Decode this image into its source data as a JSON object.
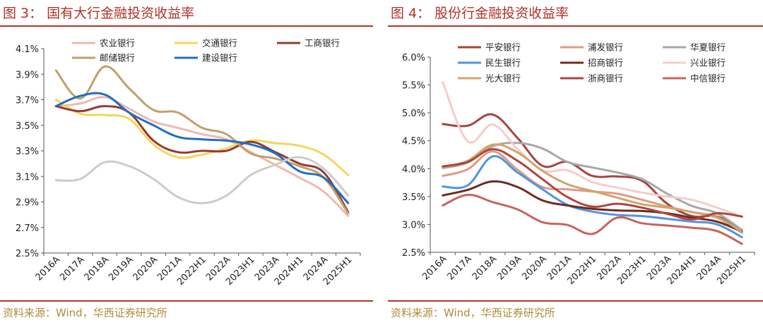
{
  "chart_data": [
    {
      "type": "line",
      "title": "图 3：  国有大行金融投资收益率",
      "source": "资料来源：Wind，华西证券研究所",
      "categories": [
        "2016A",
        "2017A",
        "2018A",
        "2019A",
        "2020A",
        "2021A",
        "2022H1",
        "2022A",
        "2023H1",
        "2023A",
        "2024H1",
        "2024A",
        "2025H1"
      ],
      "ylim": [
        2.5,
        4.1
      ],
      "yticks": [
        "4.1%",
        "3.9%",
        "3.7%",
        "3.5%",
        "3.3%",
        "3.1%",
        "2.9%",
        "2.7%",
        "2.5%"
      ],
      "legend_position": "top",
      "series": [
        {
          "name": "农业银行",
          "color": "#f0b8b0",
          "values": [
            3.65,
            3.67,
            3.72,
            3.63,
            3.53,
            3.48,
            3.43,
            3.39,
            3.29,
            3.19,
            3.09,
            2.98,
            2.79
          ]
        },
        {
          "name": "交通银行",
          "color": "#f5d75a",
          "values": [
            3.7,
            3.59,
            3.58,
            3.55,
            3.35,
            3.25,
            3.27,
            3.32,
            3.38,
            3.36,
            3.34,
            3.27,
            3.11
          ]
        },
        {
          "name": "工商银行",
          "color": "#953a32",
          "values": [
            3.65,
            3.61,
            3.65,
            3.6,
            3.38,
            3.29,
            3.3,
            3.3,
            3.37,
            3.29,
            3.2,
            3.13,
            2.82
          ]
        },
        {
          "name": "邮储银行",
          "color": "#c3a06a",
          "values": [
            3.93,
            3.71,
            3.96,
            3.79,
            3.62,
            3.6,
            3.48,
            3.43,
            3.28,
            3.24,
            3.18,
            3.09,
            2.81
          ]
        },
        {
          "name": "建设银行",
          "color": "#1f6fbf",
          "values": [
            3.65,
            3.73,
            3.74,
            3.6,
            3.5,
            3.41,
            3.39,
            3.38,
            3.35,
            3.28,
            3.14,
            3.09,
            2.89
          ]
        },
        {
          "name": "",
          "color": "#cccccc",
          "values": [
            3.07,
            3.08,
            3.21,
            3.18,
            3.08,
            2.94,
            2.89,
            2.95,
            3.11,
            3.19,
            3.25,
            3.16,
            2.95
          ]
        }
      ]
    },
    {
      "type": "line",
      "title": "图 4：  股份行金融投资收益率",
      "source": "资料来源：Wind，华西证券研究所",
      "categories": [
        "2016A",
        "2017A",
        "2018A",
        "2019A",
        "2020A",
        "2021A",
        "2022H1",
        "2022A",
        "2023H1",
        "2023A",
        "2024H1",
        "2024A",
        "2025H1"
      ],
      "ylim": [
        2.5,
        6.0
      ],
      "yticks": [
        "6.0%",
        "5.5%",
        "5.0%",
        "4.5%",
        "4.0%",
        "3.5%",
        "3.0%",
        "2.5%"
      ],
      "legend_position": "top",
      "series": [
        {
          "name": "平安银行",
          "color": "#a4453e",
          "values": [
            4.8,
            4.77,
            4.97,
            4.55,
            4.05,
            4.12,
            3.87,
            3.86,
            3.78,
            3.37,
            3.15,
            3.14,
            2.9
          ]
        },
        {
          "name": "浦发银行",
          "color": "#e09a86",
          "values": [
            3.87,
            3.99,
            4.31,
            3.98,
            3.67,
            3.63,
            3.59,
            3.55,
            3.44,
            3.32,
            3.22,
            3.12,
            2.85
          ]
        },
        {
          "name": "华夏银行",
          "color": "#a8a8a8",
          "values": [
            4.01,
            4.11,
            4.4,
            4.46,
            4.36,
            4.12,
            4.02,
            3.93,
            3.81,
            3.55,
            3.33,
            3.2,
            2.9
          ]
        },
        {
          "name": "民生银行",
          "color": "#4f95e0",
          "values": [
            3.68,
            3.7,
            4.22,
            3.93,
            3.63,
            3.35,
            3.23,
            3.17,
            3.15,
            3.1,
            3.05,
            3.0,
            2.77
          ]
        },
        {
          "name": "招商银行",
          "color": "#6f2a22",
          "values": [
            3.52,
            3.62,
            3.77,
            3.67,
            3.43,
            3.34,
            3.28,
            3.25,
            3.24,
            3.2,
            3.12,
            3.05,
            2.87
          ]
        },
        {
          "name": "兴业银行",
          "color": "#f4cdca",
          "values": [
            5.55,
            4.49,
            4.79,
            4.35,
            3.97,
            3.97,
            3.76,
            3.66,
            3.57,
            3.5,
            3.44,
            3.3,
            3.14
          ]
        },
        {
          "name": "光大银行",
          "color": "#cfa56a",
          "values": [
            4.03,
            4.14,
            4.43,
            4.29,
            3.96,
            3.72,
            3.6,
            3.48,
            3.36,
            3.3,
            3.22,
            3.13,
            2.86
          ]
        },
        {
          "name": "浙商银行",
          "color": "#b0453c",
          "values": [
            4.04,
            4.12,
            4.35,
            4.14,
            3.81,
            3.49,
            3.32,
            3.37,
            3.3,
            3.19,
            3.09,
            3.2,
            3.14
          ]
        },
        {
          "name": "中信银行",
          "color": "#c8645a",
          "values": [
            3.34,
            3.53,
            3.4,
            3.27,
            3.04,
            2.99,
            2.83,
            3.12,
            3.02,
            2.98,
            2.94,
            2.88,
            2.65
          ]
        }
      ]
    }
  ]
}
